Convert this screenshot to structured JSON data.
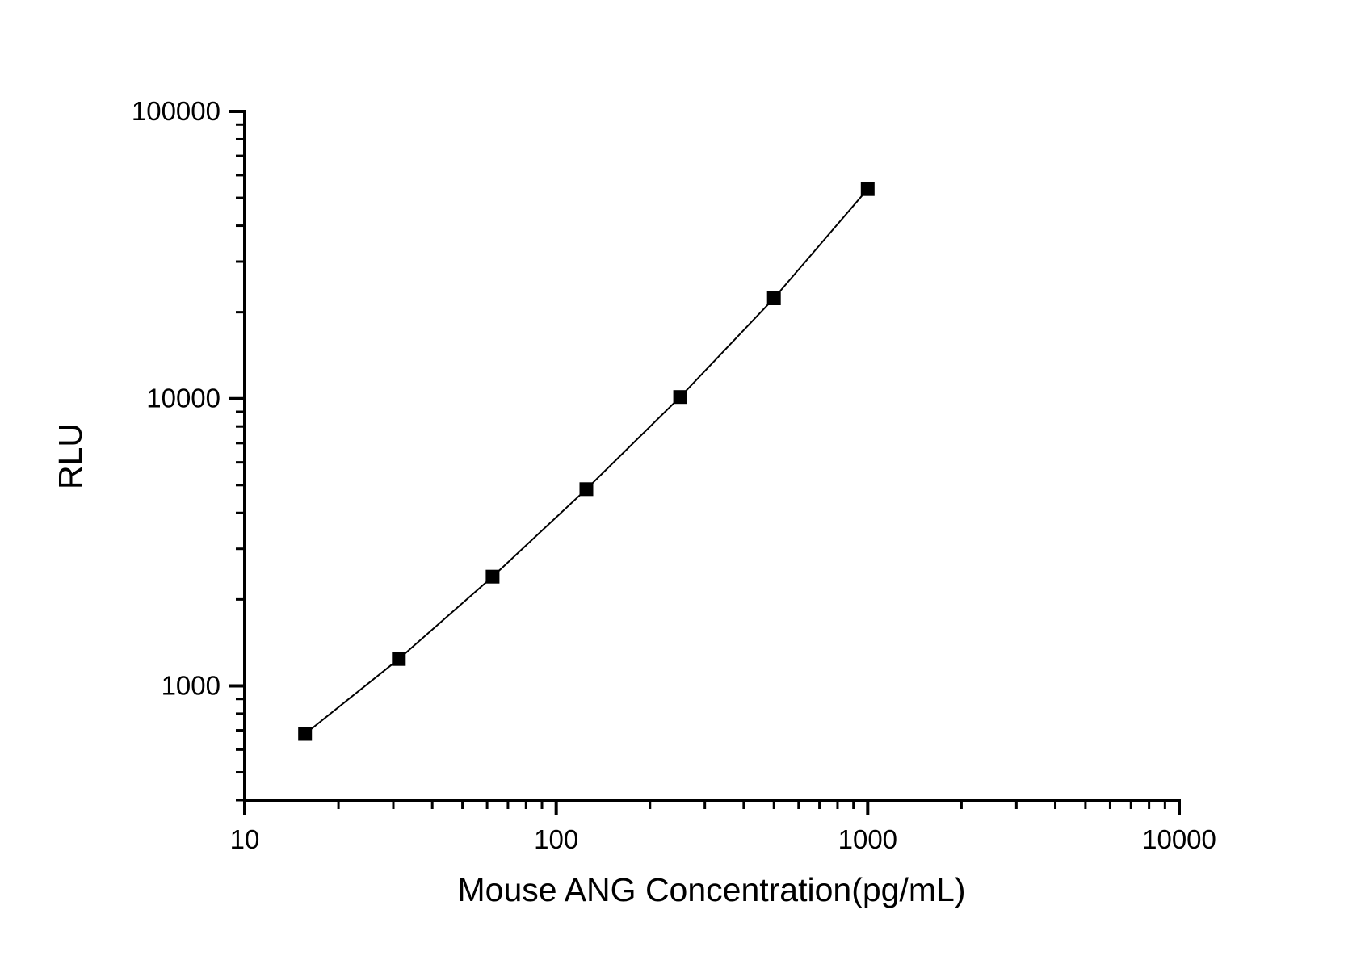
{
  "chart_data": {
    "type": "scatter",
    "title": "",
    "xlabel": "Mouse ANG Concentration(pg/mL)",
    "ylabel": "RLU",
    "x_scale": "log",
    "y_scale": "log",
    "xlim": [
      10,
      10000
    ],
    "ylim": [
      400,
      100000
    ],
    "grid": false,
    "legend": null,
    "x_major_ticks": [
      {
        "value": 10,
        "label": "10"
      },
      {
        "value": 100,
        "label": "100"
      },
      {
        "value": 1000,
        "label": "1000"
      },
      {
        "value": 10000,
        "label": "10000"
      }
    ],
    "y_major_ticks": [
      {
        "value": 1000,
        "label": "1000"
      },
      {
        "value": 10000,
        "label": "10000"
      },
      {
        "value": 100000,
        "label": "100000"
      }
    ],
    "minor_ticks": "log-subdivisions-2-to-9",
    "series": [
      {
        "marker": "filled-square",
        "marker_size_px": 17,
        "line_color": "#000000",
        "marker_color": "#000000",
        "points": [
          {
            "x": 15.625,
            "y": 680
          },
          {
            "x": 31.25,
            "y": 1240
          },
          {
            "x": 62.5,
            "y": 2400
          },
          {
            "x": 125,
            "y": 4840
          },
          {
            "x": 250,
            "y": 10130
          },
          {
            "x": 500,
            "y": 22350
          },
          {
            "x": 1000,
            "y": 53660
          }
        ]
      }
    ],
    "colors": {
      "background": "#ffffff",
      "axis": "#000000",
      "text": "#000000"
    }
  }
}
